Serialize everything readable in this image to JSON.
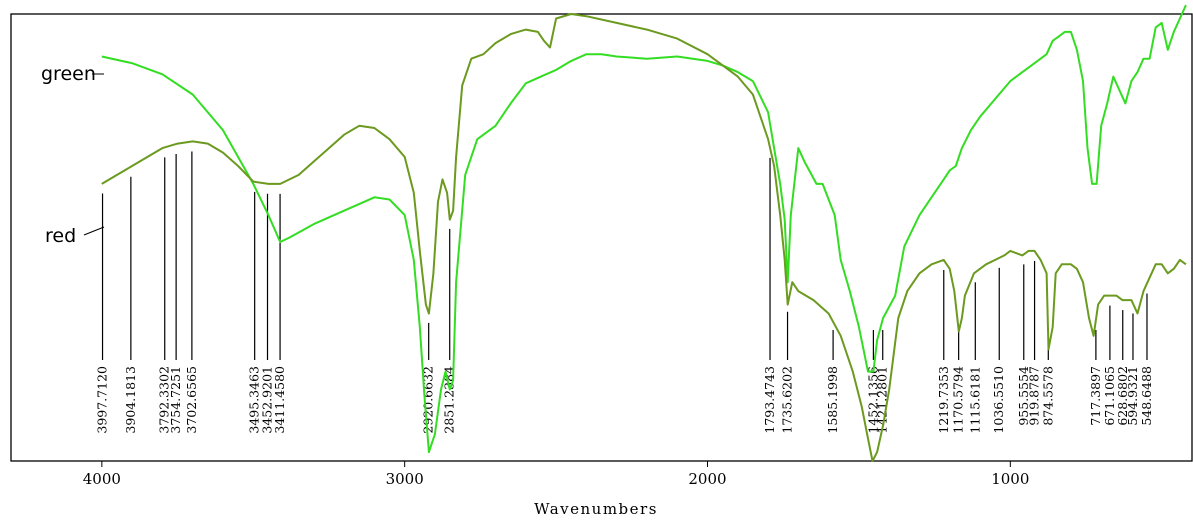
{
  "chart_data": {
    "type": "line",
    "xlabel": "Wavenumbers",
    "xlim": [
      4300,
      400
    ],
    "x_ticks": [
      4000,
      3000,
      2000,
      1000
    ],
    "grid": false,
    "colors": {
      "green": "#33dd22",
      "red": "#6b9a1f"
    },
    "series": [
      {
        "name": "green",
        "points": [
          [
            4000,
            0.905
          ],
          [
            3900,
            0.89
          ],
          [
            3800,
            0.865
          ],
          [
            3700,
            0.82
          ],
          [
            3600,
            0.74
          ],
          [
            3500,
            0.62
          ],
          [
            3450,
            0.55
          ],
          [
            3411,
            0.49
          ],
          [
            3380,
            0.5
          ],
          [
            3300,
            0.53
          ],
          [
            3200,
            0.56
          ],
          [
            3100,
            0.59
          ],
          [
            3050,
            0.585
          ],
          [
            3000,
            0.55
          ],
          [
            2970,
            0.45
          ],
          [
            2950,
            0.3
          ],
          [
            2935,
            0.15
          ],
          [
            2920,
            0.02
          ],
          [
            2900,
            0.06
          ],
          [
            2880,
            0.16
          ],
          [
            2865,
            0.2
          ],
          [
            2851,
            0.16
          ],
          [
            2840,
            0.18
          ],
          [
            2830,
            0.4
          ],
          [
            2800,
            0.64
          ],
          [
            2760,
            0.72
          ],
          [
            2700,
            0.75
          ],
          [
            2650,
            0.8
          ],
          [
            2600,
            0.845
          ],
          [
            2550,
            0.86
          ],
          [
            2500,
            0.875
          ],
          [
            2450,
            0.895
          ],
          [
            2400,
            0.91
          ],
          [
            2350,
            0.91
          ],
          [
            2300,
            0.905
          ],
          [
            2200,
            0.9
          ],
          [
            2100,
            0.905
          ],
          [
            2000,
            0.895
          ],
          [
            1950,
            0.885
          ],
          [
            1900,
            0.87
          ],
          [
            1850,
            0.85
          ],
          [
            1800,
            0.78
          ],
          [
            1780,
            0.7
          ],
          [
            1760,
            0.62
          ],
          [
            1745,
            0.54
          ],
          [
            1735,
            0.4
          ],
          [
            1725,
            0.55
          ],
          [
            1700,
            0.7
          ],
          [
            1680,
            0.67
          ],
          [
            1640,
            0.62
          ],
          [
            1620,
            0.62
          ],
          [
            1580,
            0.55
          ],
          [
            1560,
            0.45
          ],
          [
            1530,
            0.38
          ],
          [
            1500,
            0.3
          ],
          [
            1470,
            0.2
          ],
          [
            1452,
            0.2
          ],
          [
            1440,
            0.27
          ],
          [
            1420,
            0.32
          ],
          [
            1380,
            0.37
          ],
          [
            1350,
            0.48
          ],
          [
            1300,
            0.55
          ],
          [
            1250,
            0.6
          ],
          [
            1220,
            0.63
          ],
          [
            1200,
            0.65
          ],
          [
            1180,
            0.66
          ],
          [
            1160,
            0.7
          ],
          [
            1130,
            0.74
          ],
          [
            1100,
            0.77
          ],
          [
            1050,
            0.81
          ],
          [
            1000,
            0.85
          ],
          [
            960,
            0.87
          ],
          [
            920,
            0.89
          ],
          [
            880,
            0.91
          ],
          [
            860,
            0.94
          ],
          [
            840,
            0.95
          ],
          [
            820,
            0.96
          ],
          [
            800,
            0.96
          ],
          [
            780,
            0.92
          ],
          [
            760,
            0.85
          ],
          [
            745,
            0.7
          ],
          [
            730,
            0.62
          ],
          [
            715,
            0.62
          ],
          [
            700,
            0.75
          ],
          [
            680,
            0.8
          ],
          [
            660,
            0.86
          ],
          [
            640,
            0.83
          ],
          [
            620,
            0.8
          ],
          [
            600,
            0.85
          ],
          [
            580,
            0.87
          ],
          [
            560,
            0.9
          ],
          [
            540,
            0.9
          ],
          [
            520,
            0.97
          ],
          [
            500,
            0.98
          ],
          [
            480,
            0.92
          ],
          [
            460,
            0.96
          ],
          [
            440,
            0.99
          ],
          [
            420,
            1.02
          ]
        ]
      },
      {
        "name": "red",
        "points": [
          [
            4000,
            0.62
          ],
          [
            3950,
            0.64
          ],
          [
            3900,
            0.66
          ],
          [
            3850,
            0.68
          ],
          [
            3800,
            0.7
          ],
          [
            3750,
            0.71
          ],
          [
            3700,
            0.715
          ],
          [
            3650,
            0.71
          ],
          [
            3600,
            0.69
          ],
          [
            3550,
            0.66
          ],
          [
            3500,
            0.625
          ],
          [
            3450,
            0.62
          ],
          [
            3411,
            0.62
          ],
          [
            3350,
            0.64
          ],
          [
            3300,
            0.67
          ],
          [
            3250,
            0.7
          ],
          [
            3200,
            0.73
          ],
          [
            3150,
            0.75
          ],
          [
            3100,
            0.745
          ],
          [
            3050,
            0.72
          ],
          [
            3000,
            0.68
          ],
          [
            2970,
            0.6
          ],
          [
            2950,
            0.47
          ],
          [
            2930,
            0.35
          ],
          [
            2920,
            0.33
          ],
          [
            2905,
            0.42
          ],
          [
            2890,
            0.58
          ],
          [
            2875,
            0.63
          ],
          [
            2860,
            0.6
          ],
          [
            2851,
            0.54
          ],
          [
            2840,
            0.56
          ],
          [
            2830,
            0.68
          ],
          [
            2810,
            0.84
          ],
          [
            2780,
            0.9
          ],
          [
            2740,
            0.91
          ],
          [
            2700,
            0.935
          ],
          [
            2650,
            0.955
          ],
          [
            2600,
            0.965
          ],
          [
            2560,
            0.96
          ],
          [
            2540,
            0.94
          ],
          [
            2520,
            0.925
          ],
          [
            2500,
            0.99
          ],
          [
            2450,
            1.0
          ],
          [
            2400,
            0.995
          ],
          [
            2300,
            0.98
          ],
          [
            2200,
            0.965
          ],
          [
            2100,
            0.945
          ],
          [
            2000,
            0.91
          ],
          [
            1900,
            0.86
          ],
          [
            1850,
            0.82
          ],
          [
            1800,
            0.72
          ],
          [
            1780,
            0.66
          ],
          [
            1760,
            0.55
          ],
          [
            1745,
            0.45
          ],
          [
            1735,
            0.35
          ],
          [
            1720,
            0.4
          ],
          [
            1700,
            0.38
          ],
          [
            1650,
            0.36
          ],
          [
            1600,
            0.33
          ],
          [
            1560,
            0.28
          ],
          [
            1520,
            0.2
          ],
          [
            1490,
            0.12
          ],
          [
            1470,
            0.05
          ],
          [
            1455,
            0.0
          ],
          [
            1440,
            0.02
          ],
          [
            1420,
            0.08
          ],
          [
            1400,
            0.16
          ],
          [
            1370,
            0.32
          ],
          [
            1340,
            0.38
          ],
          [
            1300,
            0.42
          ],
          [
            1260,
            0.44
          ],
          [
            1220,
            0.45
          ],
          [
            1200,
            0.43
          ],
          [
            1185,
            0.38
          ],
          [
            1170,
            0.29
          ],
          [
            1160,
            0.32
          ],
          [
            1150,
            0.37
          ],
          [
            1120,
            0.42
          ],
          [
            1100,
            0.43
          ],
          [
            1080,
            0.44
          ],
          [
            1050,
            0.45
          ],
          [
            1020,
            0.46
          ],
          [
            1000,
            0.47
          ],
          [
            960,
            0.46
          ],
          [
            940,
            0.47
          ],
          [
            920,
            0.47
          ],
          [
            900,
            0.45
          ],
          [
            880,
            0.42
          ],
          [
            874,
            0.25
          ],
          [
            860,
            0.3
          ],
          [
            850,
            0.42
          ],
          [
            830,
            0.44
          ],
          [
            800,
            0.44
          ],
          [
            780,
            0.43
          ],
          [
            760,
            0.4
          ],
          [
            740,
            0.32
          ],
          [
            725,
            0.28
          ],
          [
            710,
            0.35
          ],
          [
            690,
            0.37
          ],
          [
            670,
            0.37
          ],
          [
            650,
            0.37
          ],
          [
            630,
            0.36
          ],
          [
            600,
            0.36
          ],
          [
            580,
            0.33
          ],
          [
            560,
            0.38
          ],
          [
            540,
            0.41
          ],
          [
            520,
            0.44
          ],
          [
            500,
            0.44
          ],
          [
            480,
            0.42
          ],
          [
            460,
            0.43
          ],
          [
            440,
            0.45
          ],
          [
            420,
            0.44
          ]
        ]
      }
    ],
    "peak_labels": [
      "3997.7120",
      "3904.1813",
      "3792.3302",
      "3754.7251",
      "3702.6565",
      "3495.3463",
      "3452.9201",
      "3411.4580",
      "2920.6632",
      "2851.2384",
      "1793.4743",
      "1735.6202",
      "1585.1998",
      "1452.1356",
      "1421.2801",
      "1219.7353",
      "1170.5794",
      "1115.6181",
      "1036.5510",
      "955.5554",
      "919.8787",
      "874.5578",
      "717.3897",
      "671.1065",
      "628.6802",
      "594.9321",
      "548.6488"
    ]
  }
}
